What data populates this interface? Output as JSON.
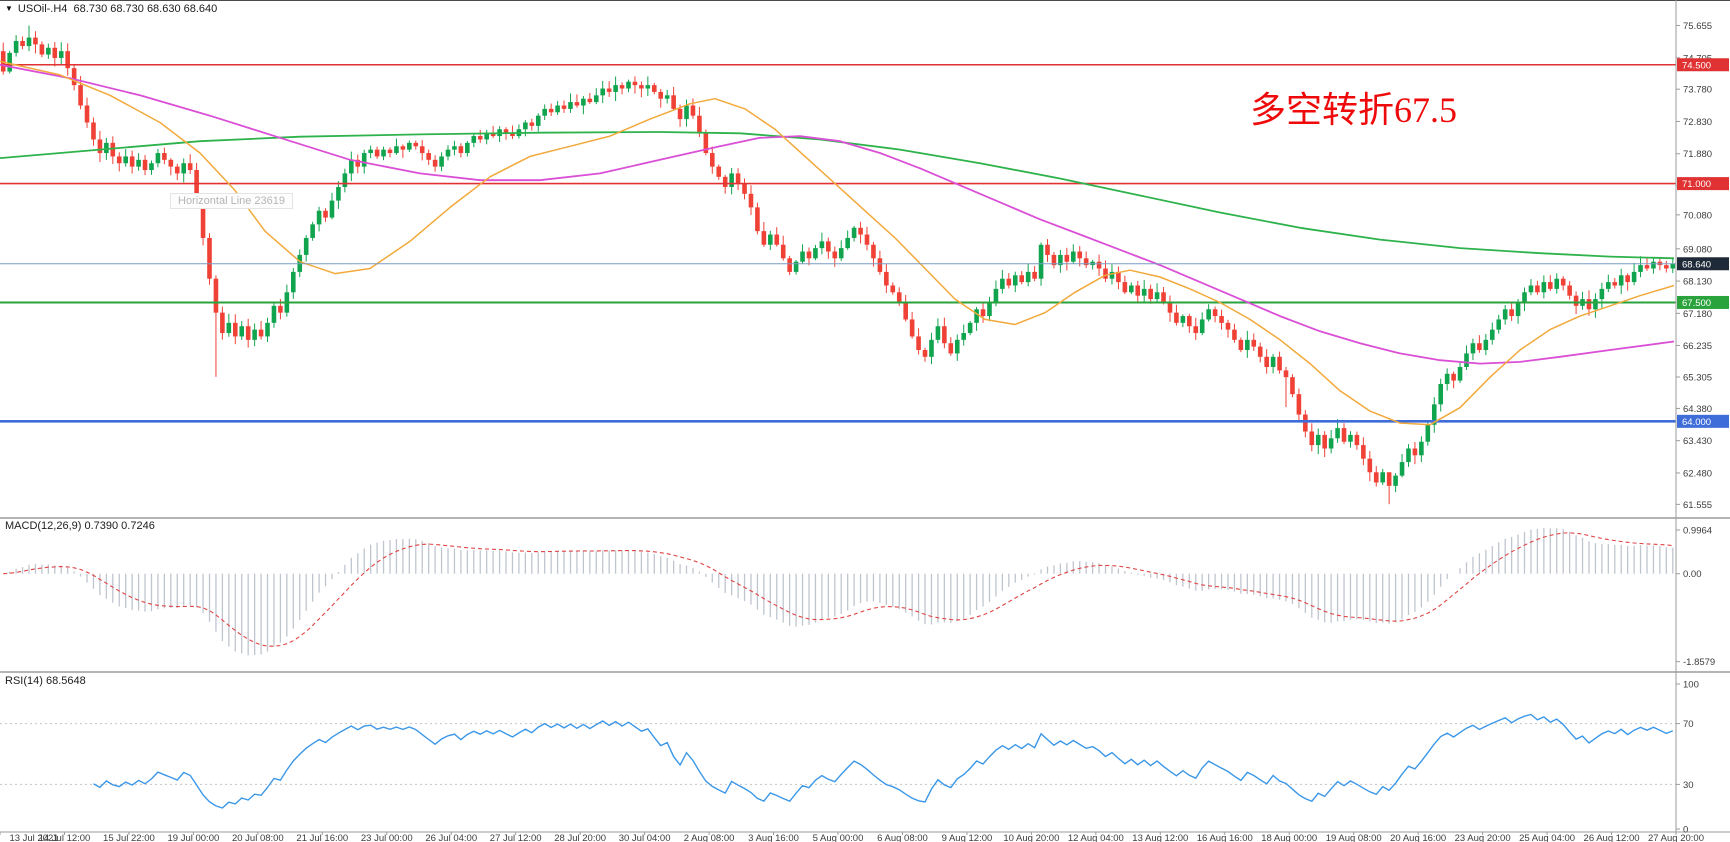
{
  "window": {
    "title_ohlc": "USOil-.H4  68.730 68.730 68.630 68.640",
    "symbol": "USOil-",
    "timeframe": "H4",
    "open": "68.730",
    "high": "68.730",
    "low": "68.630",
    "close": "68.640"
  },
  "chart_data": {
    "type": "candlestick",
    "annotation": {
      "text": "多空转折67.5",
      "color": "#ee0a0a"
    },
    "tooltip": "Horizontal Line 23619",
    "ylim": [
      61.33,
      76.23
    ],
    "price_axis_ticks": [
      "75.655",
      "74.705",
      "73.780",
      "72.830",
      "71.880",
      "70.930",
      "70.080",
      "69.080",
      "68.130",
      "67.180",
      "66.235",
      "65.305",
      "64.380",
      "63.430",
      "62.480",
      "61.555"
    ],
    "x_labels": [
      "13 Jul 2021",
      "14 Jul 12:00",
      "15 Jul 22:00",
      "19 Jul 00:00",
      "20 Jul 08:00",
      "21 Jul 16:00",
      "23 Jul 00:00",
      "26 Jul 04:00",
      "27 Jul 12:00",
      "28 Jul 20:00",
      "30 Jul 04:00",
      "2 Aug 08:00",
      "3 Aug 16:00",
      "5 Aug 00:00",
      "6 Aug 08:00",
      "9 Aug 12:00",
      "10 Aug 20:00",
      "12 Aug 04:00",
      "13 Aug 12:00",
      "16 Aug 16:00",
      "18 Aug 00:00",
      "19 Aug 08:00",
      "20 Aug 16:00",
      "23 Aug 20:00",
      "25 Aug 04:00",
      "26 Aug 12:00",
      "27 Aug 20:00"
    ],
    "hlines": [
      {
        "price": 74.5,
        "label": "74.500",
        "color": "#e03232",
        "width": 1.6
      },
      {
        "price": 71.0,
        "label": "71.000",
        "color": "#e03232",
        "width": 1.6
      },
      {
        "price": 67.5,
        "label": "67.500",
        "color": "#2ba33c",
        "width": 2
      },
      {
        "price": 64.0,
        "label": "64.000",
        "color": "#3e6cd8",
        "width": 2.6
      }
    ],
    "current_price": {
      "value": 68.64,
      "label": "68.640"
    },
    "candles": {
      "first_open": 74.9,
      "closes": [
        74.3,
        74.85,
        75.2,
        75.05,
        75.3,
        75.1,
        74.8,
        75.0,
        74.7,
        74.9,
        74.4,
        73.9,
        73.3,
        72.8,
        72.3,
        71.9,
        72.2,
        71.8,
        71.6,
        71.8,
        71.5,
        71.7,
        71.4,
        71.6,
        71.9,
        71.7,
        71.5,
        71.3,
        71.6,
        71.4,
        70.6,
        69.4,
        68.2,
        67.2,
        66.6,
        66.9,
        66.5,
        66.8,
        66.4,
        66.7,
        66.5,
        66.9,
        67.4,
        67.2,
        67.8,
        68.4,
        68.9,
        69.4,
        69.8,
        70.2,
        70.0,
        70.5,
        70.9,
        71.3,
        71.7,
        71.5,
        71.9,
        72.0,
        71.8,
        72.0,
        71.9,
        72.1,
        72.0,
        72.2,
        72.1,
        71.9,
        71.7,
        71.5,
        71.8,
        72.0,
        72.1,
        71.9,
        72.2,
        72.4,
        72.3,
        72.5,
        72.4,
        72.6,
        72.5,
        72.4,
        72.6,
        72.8,
        72.7,
        73.0,
        73.2,
        73.1,
        73.3,
        73.2,
        73.4,
        73.3,
        73.5,
        73.4,
        73.6,
        73.8,
        73.7,
        73.9,
        73.8,
        74.0,
        73.9,
        73.8,
        73.9,
        73.7,
        73.5,
        73.6,
        73.2,
        72.9,
        73.3,
        73.0,
        72.5,
        71.9,
        71.5,
        71.2,
        70.9,
        71.3,
        71.0,
        70.7,
        70.3,
        69.6,
        69.2,
        69.5,
        69.2,
        68.8,
        68.4,
        68.7,
        69.0,
        68.8,
        69.1,
        69.3,
        69.0,
        68.8,
        69.1,
        69.4,
        69.7,
        69.5,
        69.2,
        68.8,
        68.4,
        68.0,
        67.8,
        67.5,
        67.0,
        66.5,
        66.1,
        65.9,
        66.4,
        66.8,
        66.3,
        66.0,
        66.4,
        66.6,
        66.9,
        67.3,
        67.1,
        67.5,
        67.9,
        68.2,
        68.0,
        68.3,
        68.1,
        68.4,
        68.2,
        69.2,
        68.9,
        68.6,
        68.9,
        68.7,
        69.0,
        68.8,
        68.6,
        68.7,
        68.5,
        68.2,
        68.4,
        68.1,
        67.8,
        68.0,
        67.7,
        67.9,
        67.6,
        67.8,
        67.5,
        67.2,
        66.9,
        67.1,
        66.8,
        66.6,
        67.0,
        67.3,
        67.1,
        66.9,
        66.7,
        66.4,
        66.1,
        66.4,
        66.2,
        65.9,
        65.6,
        65.9,
        65.5,
        65.3,
        64.8,
        64.2,
        63.7,
        63.3,
        63.6,
        63.2,
        63.5,
        63.8,
        63.4,
        63.6,
        63.3,
        62.9,
        62.5,
        62.2,
        62.5,
        62.1,
        62.4,
        62.8,
        63.2,
        63.0,
        63.4,
        63.9,
        64.5,
        65.1,
        65.4,
        65.2,
        65.6,
        66.0,
        66.3,
        66.1,
        66.4,
        66.7,
        67.0,
        67.3,
        67.1,
        67.5,
        67.8,
        68.0,
        67.8,
        68.1,
        67.9,
        68.2,
        68.0,
        67.7,
        67.4,
        67.6,
        67.3,
        67.6,
        67.9,
        68.1,
        68.0,
        68.3,
        68.1,
        68.4,
        68.6,
        68.5,
        68.7,
        68.6,
        68.5,
        68.64
      ],
      "wick_overrides": {
        "4": [
          75.655,
          74.9
        ],
        "33": [
          68.3,
          65.31
        ],
        "199": [
          65.6,
          64.42
        ],
        "215": [
          62.5,
          61.56
        ]
      }
    },
    "moving_averages": [
      {
        "name": "ma-slow-green",
        "color": "#2eb24b",
        "width": 1.8,
        "points": [
          [
            0,
            71.75
          ],
          [
            100,
            72.0
          ],
          [
            200,
            72.25
          ],
          [
            300,
            72.38
          ],
          [
            420,
            72.45
          ],
          [
            540,
            72.5
          ],
          [
            660,
            72.52
          ],
          [
            740,
            72.48
          ],
          [
            820,
            72.3
          ],
          [
            900,
            72.0
          ],
          [
            980,
            71.6
          ],
          [
            1060,
            71.15
          ],
          [
            1140,
            70.65
          ],
          [
            1220,
            70.15
          ],
          [
            1300,
            69.7
          ],
          [
            1380,
            69.35
          ],
          [
            1460,
            69.1
          ],
          [
            1540,
            68.95
          ],
          [
            1610,
            68.85
          ],
          [
            1674,
            68.8
          ]
        ]
      },
      {
        "name": "ma-mid-magenta",
        "color": "#da4fd6",
        "width": 1.8,
        "points": [
          [
            0,
            74.5
          ],
          [
            70,
            74.1
          ],
          [
            140,
            73.6
          ],
          [
            210,
            73.0
          ],
          [
            280,
            72.35
          ],
          [
            350,
            71.7
          ],
          [
            420,
            71.3
          ],
          [
            480,
            71.1
          ],
          [
            540,
            71.1
          ],
          [
            600,
            71.3
          ],
          [
            660,
            71.7
          ],
          [
            720,
            72.1
          ],
          [
            760,
            72.35
          ],
          [
            800,
            72.4
          ],
          [
            840,
            72.25
          ],
          [
            880,
            71.9
          ],
          [
            920,
            71.45
          ],
          [
            960,
            70.95
          ],
          [
            1000,
            70.45
          ],
          [
            1040,
            69.95
          ],
          [
            1080,
            69.5
          ],
          [
            1120,
            69.05
          ],
          [
            1160,
            68.6
          ],
          [
            1200,
            68.1
          ],
          [
            1240,
            67.6
          ],
          [
            1280,
            67.1
          ],
          [
            1320,
            66.65
          ],
          [
            1360,
            66.3
          ],
          [
            1400,
            66.0
          ],
          [
            1440,
            65.8
          ],
          [
            1480,
            65.7
          ],
          [
            1520,
            65.75
          ],
          [
            1560,
            65.9
          ],
          [
            1610,
            66.1
          ],
          [
            1674,
            66.35
          ]
        ]
      },
      {
        "name": "ma-fast-orange",
        "color": "#f2a93b",
        "width": 1.5,
        "points": [
          [
            0,
            74.6
          ],
          [
            60,
            74.2
          ],
          [
            110,
            73.6
          ],
          [
            160,
            72.8
          ],
          [
            200,
            71.9
          ],
          [
            235,
            70.8
          ],
          [
            265,
            69.6
          ],
          [
            300,
            68.7
          ],
          [
            335,
            68.35
          ],
          [
            370,
            68.5
          ],
          [
            410,
            69.3
          ],
          [
            450,
            70.3
          ],
          [
            490,
            71.2
          ],
          [
            530,
            71.8
          ],
          [
            570,
            72.1
          ],
          [
            610,
            72.4
          ],
          [
            650,
            72.9
          ],
          [
            690,
            73.35
          ],
          [
            715,
            73.5
          ],
          [
            745,
            73.2
          ],
          [
            775,
            72.6
          ],
          [
            805,
            71.8
          ],
          [
            835,
            71.0
          ],
          [
            865,
            70.2
          ],
          [
            895,
            69.4
          ],
          [
            925,
            68.5
          ],
          [
            955,
            67.6
          ],
          [
            985,
            67.0
          ],
          [
            1015,
            66.85
          ],
          [
            1045,
            67.2
          ],
          [
            1075,
            67.8
          ],
          [
            1105,
            68.3
          ],
          [
            1130,
            68.45
          ],
          [
            1160,
            68.25
          ],
          [
            1190,
            67.9
          ],
          [
            1220,
            67.5
          ],
          [
            1250,
            67.0
          ],
          [
            1280,
            66.4
          ],
          [
            1310,
            65.7
          ],
          [
            1340,
            64.9
          ],
          [
            1370,
            64.3
          ],
          [
            1400,
            63.95
          ],
          [
            1430,
            63.9
          ],
          [
            1460,
            64.4
          ],
          [
            1490,
            65.3
          ],
          [
            1520,
            66.1
          ],
          [
            1550,
            66.7
          ],
          [
            1580,
            67.1
          ],
          [
            1610,
            67.4
          ],
          [
            1640,
            67.7
          ],
          [
            1674,
            68.0
          ]
        ]
      }
    ],
    "macd": {
      "label": "MACD(12,26,9) 0.7390 0.7246",
      "fast": 12,
      "slow": 26,
      "signal": 9,
      "macd_value": "0.7390",
      "signal_value": "0.7246",
      "axis_ticks": [
        "0.9964",
        "0.00",
        "-1.8579"
      ],
      "ylim": [
        -1.95,
        1.05
      ],
      "derived_from": "candles.closes"
    },
    "rsi": {
      "label": "RSI(14) 68.5648",
      "period": 14,
      "value": "68.5648",
      "axis_ticks": [
        "100",
        "70",
        "30",
        "0"
      ],
      "levels": [
        70,
        30
      ],
      "ylim": [
        0,
        100
      ],
      "derived_from": "candles.closes"
    },
    "colors": {
      "bull": "#10a44e",
      "bear": "#ef4136",
      "price_line": "#7a9cc4",
      "price_chip_bg": "#1f2a38",
      "macd_hist": "#bfc5cf",
      "macd_signal": "#e04444",
      "rsi_line": "#3b97e8",
      "rsi_level": "#c4c4c4",
      "axis_text": "#3c3c3c",
      "separator": "#9b9b9b"
    }
  }
}
